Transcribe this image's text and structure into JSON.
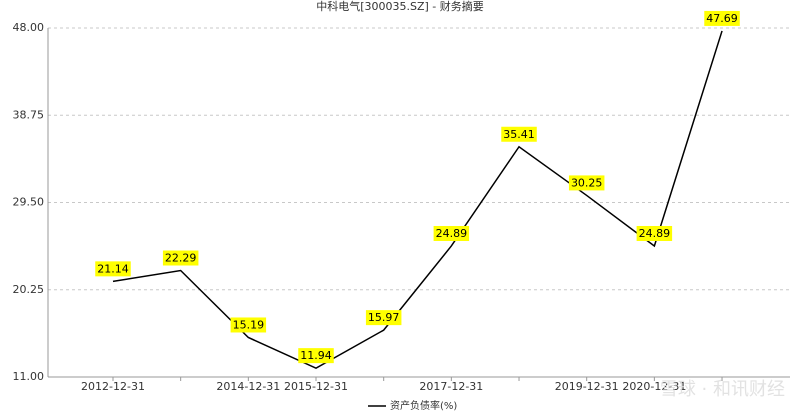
{
  "chart_data": {
    "type": "line",
    "title": "中科电气[300035.SZ] - 财务摘要",
    "categories": [
      "2012-12-31",
      null,
      "2014-12-31",
      "2015-12-31",
      null,
      "2017-12-31",
      null,
      "2019-12-31",
      "2020-12-31",
      null
    ],
    "series": [
      {
        "name": "资产负债率(%)",
        "color": "#000000",
        "values": [
          21.14,
          22.29,
          15.19,
          11.94,
          15.97,
          24.89,
          35.41,
          30.25,
          24.89,
          47.69
        ]
      }
    ],
    "ylim": [
      11,
      48
    ],
    "yticks": [
      {
        "value": 11,
        "label": "11.00"
      },
      {
        "value": 20.25,
        "label": "20.25"
      },
      {
        "value": 29.5,
        "label": "29.50"
      },
      {
        "value": 38.75,
        "label": "38.75"
      },
      {
        "value": 48,
        "label": "48.00"
      }
    ],
    "grid": true,
    "label_color": "#ffff00",
    "legend": "bottom",
    "watermark": "雪球 · 和讯财经"
  }
}
